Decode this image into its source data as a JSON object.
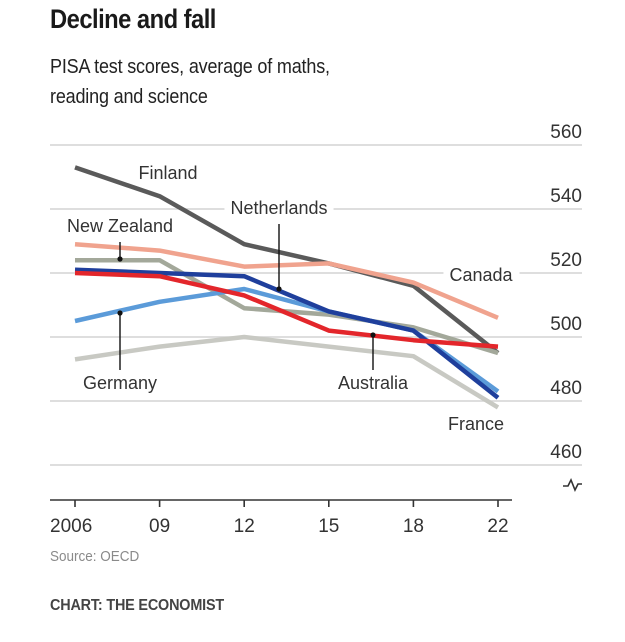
{
  "header": {
    "title": "Decline and fall",
    "subtitle": "PISA test scores, average of maths, reading and science"
  },
  "footer": {
    "source": "Source: OECD",
    "credit": "CHART: THE ECONOMIST"
  },
  "chart_data": {
    "type": "line",
    "title": "Decline and fall",
    "subtitle": "PISA test scores, average of maths, reading and science",
    "xlabel": "",
    "ylabel": "",
    "x": [
      "2006",
      "09",
      "12",
      "15",
      "18",
      "22"
    ],
    "x_years": [
      2006,
      2009,
      2012,
      2015,
      2018,
      2022
    ],
    "ylim": [
      460,
      560
    ],
    "yticks": [
      460,
      480,
      500,
      520,
      540,
      560
    ],
    "y_axis_position": "right",
    "y_axis_break": true,
    "grid": true,
    "legend": "inline-labels",
    "series": [
      {
        "name": "Finland",
        "color": "#5a5a5a",
        "values": [
          553,
          544,
          529,
          523,
          516,
          495
        ]
      },
      {
        "name": "Canada",
        "color": "#f0a38e",
        "values": [
          529,
          527,
          522,
          523,
          517,
          506
        ]
      },
      {
        "name": "New Zealand",
        "color": "#a3a89a",
        "values": [
          524,
          524,
          509,
          507,
          503,
          495
        ]
      },
      {
        "name": "Germany",
        "color": "#5b9bd9",
        "values": [
          505,
          511,
          515,
          508,
          502,
          483
        ]
      },
      {
        "name": "France",
        "color": "#c8c9c3",
        "values": [
          493,
          497,
          500,
          497,
          494,
          478
        ]
      },
      {
        "name": "Netherlands",
        "color": "#1f3f9c",
        "values": [
          521,
          520,
          519,
          508,
          502,
          481
        ]
      },
      {
        "name": "Australia",
        "color": "#e3262b",
        "values": [
          520,
          519,
          513,
          502,
          499,
          497
        ]
      }
    ],
    "annotations": [
      {
        "text": "Finland",
        "series": "Finland"
      },
      {
        "text": "New Zealand",
        "series": "New Zealand",
        "leader": true
      },
      {
        "text": "Netherlands",
        "series": "Netherlands",
        "leader": true
      },
      {
        "text": "Canada",
        "series": "Canada"
      },
      {
        "text": "Germany",
        "series": "Germany",
        "leader": true
      },
      {
        "text": "Australia",
        "series": "Australia",
        "leader": true
      },
      {
        "text": "France",
        "series": "France"
      }
    ]
  }
}
